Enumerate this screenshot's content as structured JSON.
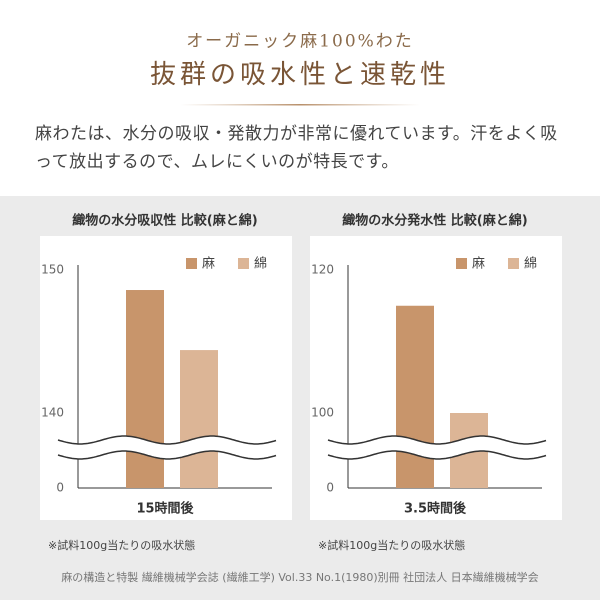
{
  "header": {
    "subtitle": "オーガニック麻100%わた",
    "title": "抜群の吸水性と速乾性",
    "description": "麻わたは、水分の吸収・発散力が非常に優れています。汗をよく吸って放出するので、ムレにくいのが特長です。"
  },
  "chart_data": [
    {
      "type": "bar",
      "title": "織物の水分吸収性 比較(麻と綿)",
      "x_label": "15時間後",
      "note": "※試料100g当たりの吸水状態",
      "series": [
        {
          "name": "麻",
          "color": "#c8956b",
          "values": [
            148.6
          ]
        },
        {
          "name": "綿",
          "color": "#dcb596",
          "values": [
            144.4
          ]
        }
      ],
      "ylim": [
        0,
        150
      ],
      "yticks": [
        0,
        140,
        150
      ],
      "axis_break": true
    },
    {
      "type": "bar",
      "title": "織物の水分発水性 比較(麻と綿)",
      "x_label": "3.5時間後",
      "note": "※試料100g当たりの吸水状態",
      "series": [
        {
          "name": "麻",
          "color": "#c8956b",
          "values": [
            115
          ]
        },
        {
          "name": "綿",
          "color": "#dcb596",
          "values": [
            100
          ]
        }
      ],
      "ylim": [
        0,
        120
      ],
      "yticks": [
        0,
        100,
        120
      ],
      "axis_break": true
    }
  ],
  "footer": "麻の構造と特製 繊維機械学会誌 (繊維工学) Vol.33 No.1(1980)別冊 社団法人 日本繊維機械学会"
}
